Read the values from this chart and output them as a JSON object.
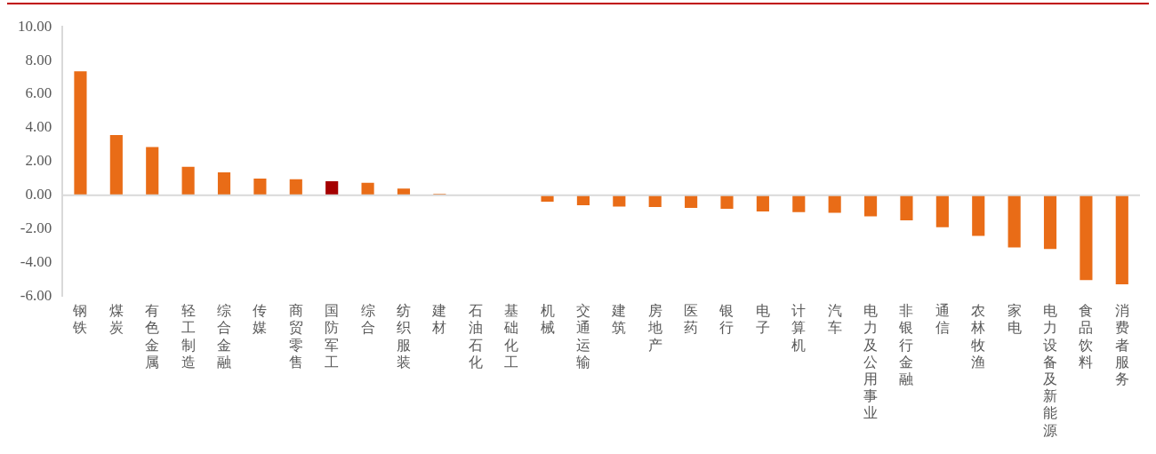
{
  "chart_data": {
    "type": "bar",
    "categories": [
      "钢铁",
      "煤炭",
      "有色金属",
      "轻工制造",
      "综合金融",
      "传媒",
      "商贸零售",
      "国防军工",
      "综合",
      "纺织服装",
      "建材",
      "石油石化",
      "基础化工",
      "机械",
      "交通运输",
      "建筑",
      "房地产",
      "医药",
      "银行",
      "电子",
      "计算机",
      "汽车",
      "电力及公用事业",
      "非银行金融",
      "通信",
      "农林牧渔",
      "家电",
      "电力设备及新能源",
      "食品饮料",
      "消费者服务"
    ],
    "values": [
      7.36,
      3.57,
      2.86,
      1.69,
      1.36,
      0.99,
      0.95,
      0.83,
      0.74,
      0.39,
      0.08,
      null,
      null,
      -0.38,
      -0.59,
      -0.68,
      -0.7,
      -0.75,
      -0.81,
      -0.97,
      -1.0,
      -1.04,
      -1.26,
      -1.49,
      -1.9,
      -2.42,
      -3.1,
      -3.19,
      -5.04,
      -5.29
    ],
    "colors": [
      "#e96c17",
      "#e96c17",
      "#e96c17",
      "#e96c17",
      "#e96c17",
      "#e96c17",
      "#e96c17",
      "#a50000",
      "#e96c17",
      "#e96c17",
      "#e96c17",
      "#e96c17",
      "#e96c17",
      "#e96c17",
      "#e96c17",
      "#e96c17",
      "#e96c17",
      "#e96c17",
      "#e96c17",
      "#e96c17",
      "#e96c17",
      "#e96c17",
      "#e96c17",
      "#e96c17",
      "#e96c17",
      "#e96c17",
      "#e96c17",
      "#e96c17",
      "#e96c17",
      "#e96c17"
    ],
    "ylim": [
      -6,
      10
    ],
    "yticks": [
      {
        "value": -6,
        "label": "-6.00"
      },
      {
        "value": -4,
        "label": "-4.00"
      },
      {
        "value": -2,
        "label": "-2.00"
      },
      {
        "value": 0,
        "label": "0.00"
      },
      {
        "value": 2,
        "label": "2.00"
      },
      {
        "value": 4,
        "label": "4.00"
      },
      {
        "value": 6,
        "label": "6.00"
      },
      {
        "value": 8,
        "label": "8.00"
      },
      {
        "value": 10,
        "label": "10.00"
      }
    ],
    "ref_lines": [
      {
        "axis": "y",
        "value": 0,
        "color": "#d9d9d9"
      }
    ],
    "grid": false,
    "legend": false
  }
}
